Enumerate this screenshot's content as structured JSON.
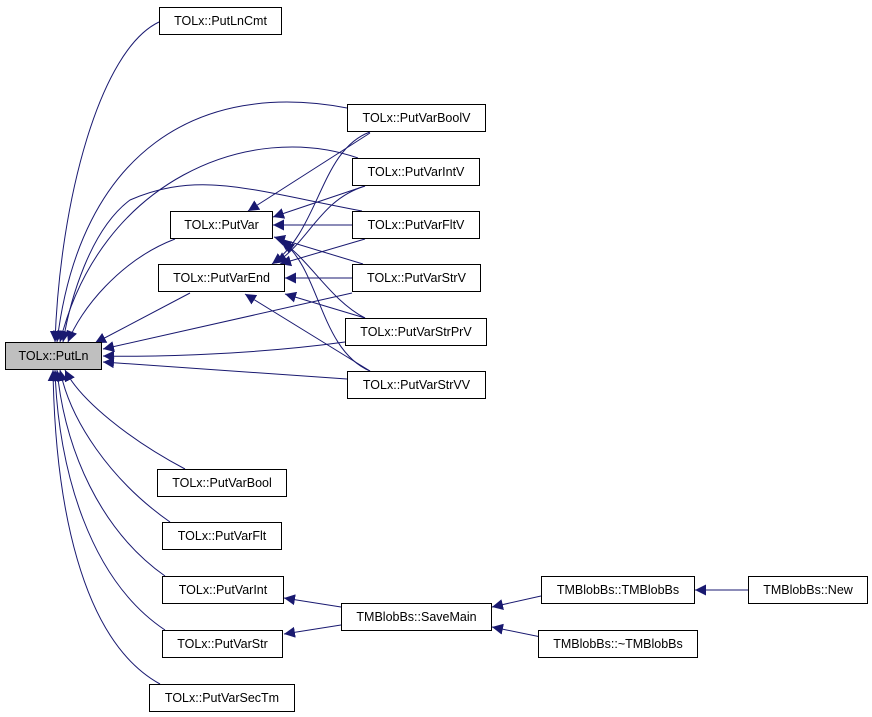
{
  "graph": {
    "edge_color": "#191970",
    "highlight_fill": "#bfbfbf",
    "nodes": {
      "putln": "TOLx::PutLn",
      "putlncmt": "TOLx::PutLnCmt",
      "putvarboolv": "TOLx::PutVarBoolV",
      "putvarintv": "TOLx::PutVarIntV",
      "putvar": "TOLx::PutVar",
      "putvarfltv": "TOLx::PutVarFltV",
      "putvarend": "TOLx::PutVarEnd",
      "putvarstrv": "TOLx::PutVarStrV",
      "putvarstrprv": "TOLx::PutVarStrPrV",
      "putvarstrvv": "TOLx::PutVarStrVV",
      "putvarbool": "TOLx::PutVarBool",
      "putvarflt": "TOLx::PutVarFlt",
      "putvarint": "TOLx::PutVarInt",
      "putvarstr": "TOLx::PutVarStr",
      "putvarsectm": "TOLx::PutVarSecTm",
      "savemain": "TMBlobBs::SaveMain",
      "tmblobbs": "TMBlobBs::TMBlobBs",
      "dtor": "TMBlobBs::~TMBlobBs",
      "new": "TMBlobBs::New"
    },
    "edges": [
      [
        "putlncmt",
        "putln"
      ],
      [
        "putvarboolv",
        "putln"
      ],
      [
        "putvarintv",
        "putln"
      ],
      [
        "putvarfltv",
        "putln"
      ],
      [
        "putvar",
        "putln"
      ],
      [
        "putvarend",
        "putln"
      ],
      [
        "putvarstrv",
        "putln"
      ],
      [
        "putvarstrprv",
        "putln"
      ],
      [
        "putvarstrvv",
        "putln"
      ],
      [
        "putvarbool",
        "putln"
      ],
      [
        "putvarflt",
        "putln"
      ],
      [
        "putvarint",
        "putln"
      ],
      [
        "putvarstr",
        "putln"
      ],
      [
        "putvarsectm",
        "putln"
      ],
      [
        "putvarboolv",
        "putvar"
      ],
      [
        "putvarintv",
        "putvar"
      ],
      [
        "putvarfltv",
        "putvar"
      ],
      [
        "putvarstrv",
        "putvar"
      ],
      [
        "putvarstrprv",
        "putvar"
      ],
      [
        "putvarstrvv",
        "putvar"
      ],
      [
        "putvarboolv",
        "putvarend"
      ],
      [
        "putvarintv",
        "putvarend"
      ],
      [
        "putvarfltv",
        "putvarend"
      ],
      [
        "putvarstrv",
        "putvarend"
      ],
      [
        "putvarstrprv",
        "putvarend"
      ],
      [
        "putvarstrvv",
        "putvarend"
      ],
      [
        "savemain",
        "putvarint"
      ],
      [
        "savemain",
        "putvarstr"
      ],
      [
        "tmblobbs",
        "savemain"
      ],
      [
        "dtor",
        "savemain"
      ],
      [
        "new",
        "tmblobbs"
      ]
    ]
  }
}
